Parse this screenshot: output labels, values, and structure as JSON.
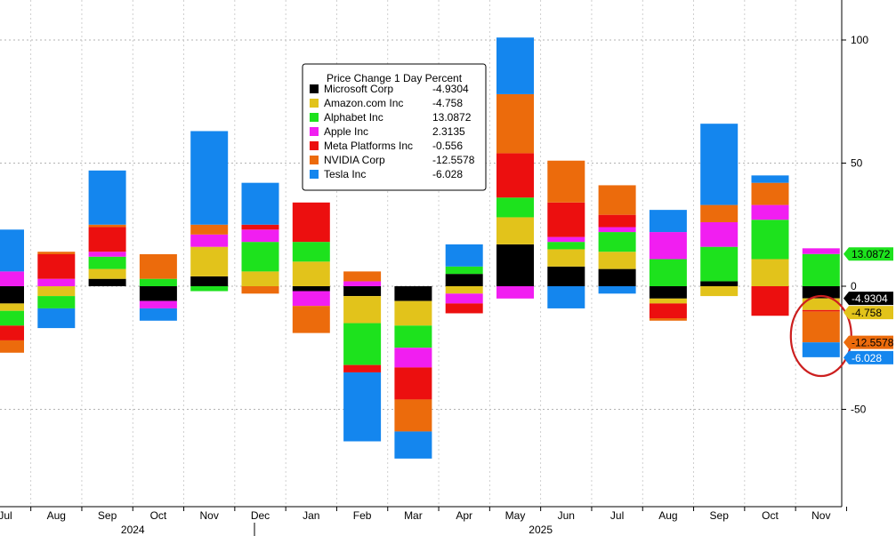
{
  "chart_data": {
    "type": "bar",
    "stacked": true,
    "diverging": true,
    "legend": {
      "title": "Price Change 1 Day Percent",
      "placement": "top-center",
      "entries": [
        {
          "name": "Microsoft Corp",
          "value": "-4.9304",
          "color": "#000000"
        },
        {
          "name": "Amazon.com Inc",
          "value": "-4.758",
          "color": "#e2c31b"
        },
        {
          "name": "Alphabet Inc",
          "value": "13.0872",
          "color": "#1de21d"
        },
        {
          "name": "Apple Inc",
          "value": "2.3135",
          "color": "#f11ef1"
        },
        {
          "name": "Meta Platforms Inc",
          "value": "-0.556",
          "color": "#ec0f0f"
        },
        {
          "name": "NVIDIA Corp",
          "value": "-12.5578",
          "color": "#ec6b0c"
        },
        {
          "name": "Tesla Inc",
          "value": "-6.028",
          "color": "#1486ee"
        }
      ]
    },
    "categories": [
      "Jul",
      "Aug",
      "Sep",
      "Oct",
      "Nov",
      "Dec",
      "Jan",
      "Feb",
      "Mar",
      "Apr",
      "May",
      "Jun",
      "Jul",
      "Aug",
      "Sep",
      "Oct",
      "Nov"
    ],
    "year_labels": [
      {
        "label": "2024",
        "category_index": 2.5
      },
      {
        "label": "2025",
        "category_index": 10.5
      }
    ],
    "series": [
      {
        "name": "Microsoft Corp",
        "values": [
          -7,
          0,
          3,
          -6,
          4,
          0,
          -2,
          -4,
          -6,
          5,
          17,
          8,
          7,
          -5,
          2,
          0,
          -4.9304
        ]
      },
      {
        "name": "Amazon.com Inc",
        "values": [
          -3,
          -4,
          4,
          0,
          12,
          6,
          10,
          -11,
          -10,
          -3,
          11,
          7,
          7,
          -2,
          -4,
          11,
          -4.758
        ]
      },
      {
        "name": "Alphabet Inc",
        "values": [
          -6,
          -5,
          5,
          3,
          -2,
          12,
          8,
          -17,
          -9,
          3,
          8,
          3,
          8,
          11,
          14,
          16,
          13.0872
        ]
      },
      {
        "name": "Apple Inc",
        "values": [
          6,
          3,
          2,
          -3,
          5,
          5,
          -6,
          2,
          -8,
          -4,
          -5,
          2,
          2,
          11,
          10,
          6,
          2.3135
        ]
      },
      {
        "name": "Meta Platforms Inc",
        "values": [
          -6,
          10,
          10,
          0,
          0,
          2,
          16,
          -3,
          -13,
          -4,
          18,
          14,
          5,
          -6,
          0,
          -12,
          -0.556
        ]
      },
      {
        "name": "NVIDIA Corp",
        "values": [
          -5,
          1,
          1,
          10,
          4,
          -3,
          -11,
          4,
          -13,
          0,
          24,
          17,
          12,
          -1,
          7,
          9,
          -12.5578
        ]
      },
      {
        "name": "Tesla Inc",
        "values": [
          17,
          -8,
          22,
          -5,
          38,
          17,
          0,
          -28,
          -11,
          9,
          23,
          -9,
          -3,
          9,
          33,
          3,
          -6.028
        ]
      }
    ],
    "value_tags": [
      {
        "label": "13.0872",
        "color": "#1de21d",
        "text_color": "#000000",
        "value": 13.0872
      },
      {
        "label": "-4.9304",
        "color": "#000000",
        "text_color": "#ffffff",
        "value": -4.9304
      },
      {
        "label": "-4.758",
        "color": "#e2c31b",
        "text_color": "#000000",
        "value": -9.6884
      },
      {
        "label": "-12.5578",
        "color": "#ec6b0c",
        "text_color": "#000000",
        "value": -22.8
      },
      {
        "label": "-6.028",
        "color": "#1486ee",
        "text_color": "#ffffff",
        "value": -29.0
      }
    ],
    "y_ticks": [
      -50,
      0,
      50,
      100
    ],
    "ylim": [
      -78,
      118
    ],
    "y_axis_position": "right",
    "grid": true,
    "xlabel": "",
    "ylabel": "",
    "annotations": [
      {
        "type": "circle",
        "target_category": "Nov",
        "target_index": 16,
        "color": "#cc1f1f"
      }
    ]
  }
}
